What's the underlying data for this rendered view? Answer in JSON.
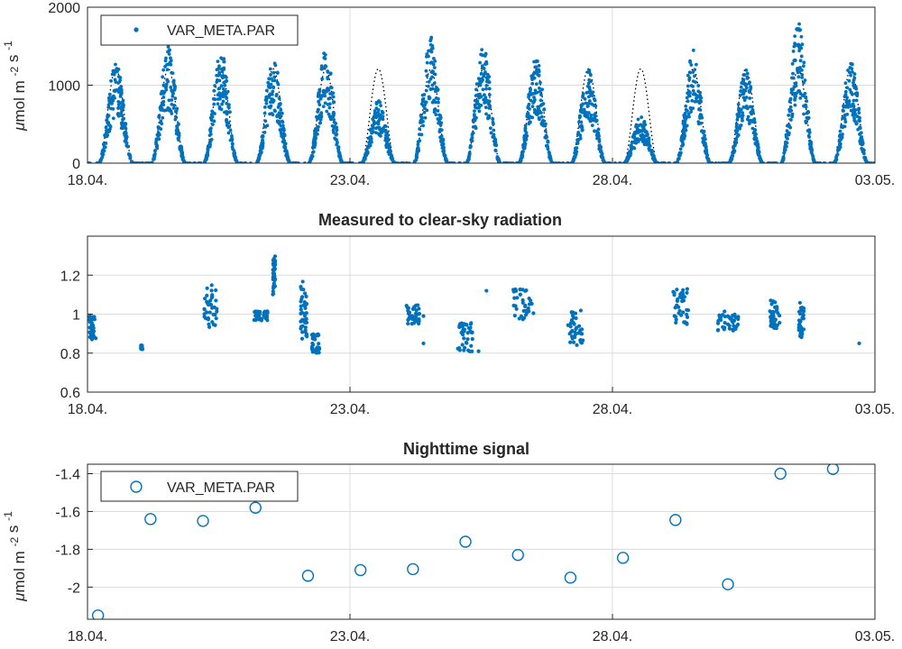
{
  "figure": {
    "colors": {
      "series": "#0072BD",
      "clear_sky": "#000000",
      "grid": "#dcdcdc",
      "axis": "#262626"
    }
  },
  "chart_data": [
    {
      "type": "scatter",
      "title": "",
      "ylabel": "μmol m⁻² s⁻¹",
      "xlabel": "",
      "xlim": [
        "2018-04-18",
        "2018-05-03"
      ],
      "ylim": [
        0,
        2000
      ],
      "yticks": [
        "0",
        "1000",
        "2000"
      ],
      "xticks": [
        "18.04.",
        "23.04.",
        "28.04.",
        "03.05."
      ],
      "grid": true,
      "legend": {
        "placement": "top-left",
        "entries": [
          "VAR_META.PAR"
        ]
      },
      "series": [
        {
          "name": "VAR_META.PAR",
          "style": "dots",
          "daily_peak": [
            {
              "date": "2018-04-18",
              "peak": 1300
            },
            {
              "date": "2018-04-19",
              "peak": 1500
            },
            {
              "date": "2018-04-20",
              "peak": 1480
            },
            {
              "date": "2018-04-21",
              "peak": 1380
            },
            {
              "date": "2018-04-22",
              "peak": 1480
            },
            {
              "date": "2018-04-23",
              "peak": 800
            },
            {
              "date": "2018-04-24",
              "peak": 1620
            },
            {
              "date": "2018-04-25",
              "peak": 1500
            },
            {
              "date": "2018-04-26",
              "peak": 1380
            },
            {
              "date": "2018-04-27",
              "peak": 1200
            },
            {
              "date": "2018-04-28",
              "peak": 600
            },
            {
              "date": "2018-04-29",
              "peak": 1450
            },
            {
              "date": "2018-04-30",
              "peak": 1230
            },
            {
              "date": "2018-05-01",
              "peak": 1800
            },
            {
              "date": "2018-05-02",
              "peak": 1300
            }
          ]
        },
        {
          "style": "dotted-line",
          "daily_peak_value": 1210
        }
      ]
    },
    {
      "type": "scatter",
      "title": "Measured to clear-sky radiation",
      "xlabel": "",
      "ylabel": "",
      "xlim": [
        "2018-04-18",
        "2018-05-03"
      ],
      "ylim": [
        0.6,
        1.4
      ],
      "yticks": [
        "0.6",
        "0.8",
        "1",
        "1.2"
      ],
      "xticks": [
        "18.04.",
        "23.04.",
        "28.04.",
        "03.05."
      ],
      "grid": true,
      "series": [
        {
          "style": "dots",
          "clusters": [
            {
              "x": 18.1,
              "width": 0.12,
              "center": 0.93,
              "spread": 0.12
            },
            {
              "x": 19.03,
              "width": 0.02,
              "center": 0.83,
              "spread": 0.02
            },
            {
              "x": 20.35,
              "width": 0.25,
              "center": 1.04,
              "spread": 0.22
            },
            {
              "x": 21.3,
              "width": 0.3,
              "center": 0.99,
              "spread": 0.05
            },
            {
              "x": 21.55,
              "width": 0.05,
              "center": 1.2,
              "spread": 0.2
            },
            {
              "x": 22.12,
              "width": 0.12,
              "center": 1.02,
              "spread": 0.3
            },
            {
              "x": 22.35,
              "width": 0.15,
              "center": 0.85,
              "spread": 0.1
            },
            {
              "x": 24.2,
              "width": 0.25,
              "center": 1.0,
              "spread": 0.1
            },
            {
              "x": 25.2,
              "width": 0.3,
              "center": 0.88,
              "spread": 0.15
            },
            {
              "x": 26.3,
              "width": 0.4,
              "center": 1.05,
              "spread": 0.16
            },
            {
              "x": 27.3,
              "width": 0.3,
              "center": 0.93,
              "spread": 0.18
            },
            {
              "x": 29.3,
              "width": 0.3,
              "center": 1.04,
              "spread": 0.19
            },
            {
              "x": 30.2,
              "width": 0.4,
              "center": 0.96,
              "spread": 0.11
            },
            {
              "x": 31.1,
              "width": 0.2,
              "center": 1.0,
              "spread": 0.15
            },
            {
              "x": 31.6,
              "width": 0.1,
              "center": 0.97,
              "spread": 0.18
            }
          ],
          "isolated_points": [
            [
              19.02,
              0.84
            ],
            [
              19.05,
              0.82
            ],
            [
              24.4,
              0.99
            ],
            [
              24.4,
              0.85
            ],
            [
              25.6,
              1.12
            ],
            [
              25.45,
              0.81
            ],
            [
              32.7,
              0.85
            ]
          ]
        }
      ]
    },
    {
      "type": "scatter",
      "title": "Nighttime signal",
      "xlabel": "",
      "ylabel": "μmol m⁻² s⁻¹",
      "xlim": [
        "2018-04-18",
        "2018-05-03"
      ],
      "ylim": [
        -2.17,
        -1.35
      ],
      "yticks": [
        "-2",
        "-1.8",
        "-1.6",
        "-1.4"
      ],
      "xticks": [
        "18.04.",
        "23.04.",
        "28.04.",
        "03.05."
      ],
      "grid": true,
      "legend": {
        "placement": "top-left",
        "entries": [
          "VAR_META.PAR"
        ]
      },
      "series": [
        {
          "name": "VAR_META.PAR",
          "style": "open-circles",
          "points": [
            {
              "x": "2018-04-18",
              "y": -2.15
            },
            {
              "x": "2018-04-19",
              "y": -1.64
            },
            {
              "x": "2018-04-20",
              "y": -1.65
            },
            {
              "x": "2018-04-21",
              "y": -1.58
            },
            {
              "x": "2018-04-22",
              "y": -1.94
            },
            {
              "x": "2018-04-23",
              "y": -1.91
            },
            {
              "x": "2018-04-24",
              "y": -1.905
            },
            {
              "x": "2018-04-25",
              "y": -1.76
            },
            {
              "x": "2018-04-26",
              "y": -1.83
            },
            {
              "x": "2018-04-27",
              "y": -1.95
            },
            {
              "x": "2018-04-28",
              "y": -1.845
            },
            {
              "x": "2018-04-29",
              "y": -1.645
            },
            {
              "x": "2018-04-30",
              "y": -1.985
            },
            {
              "x": "2018-05-01",
              "y": -1.4
            },
            {
              "x": "2018-05-02",
              "y": -1.375
            }
          ]
        }
      ]
    }
  ]
}
